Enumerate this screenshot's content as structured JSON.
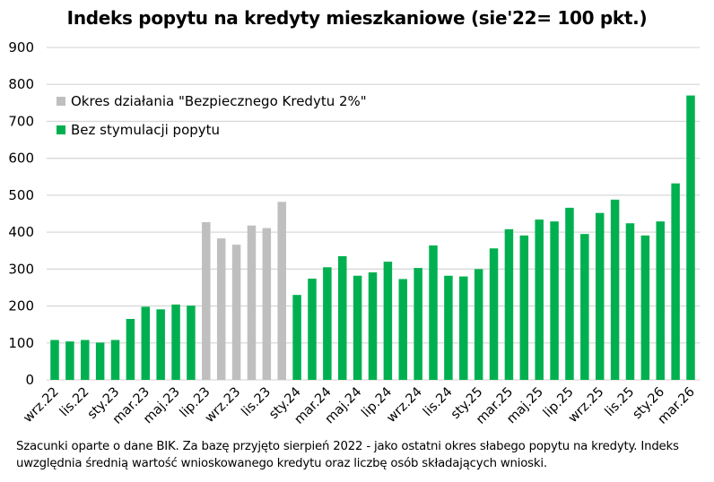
{
  "chart_data": {
    "type": "bar",
    "title": "Indeks popytu na kredyty mieszkaniowe (sie'22= 100 pkt.)",
    "xlabel": "",
    "ylabel": "",
    "ylim": [
      0,
      900
    ],
    "yticks": [
      0,
      100,
      200,
      300,
      400,
      500,
      600,
      700,
      800,
      900
    ],
    "grid": true,
    "legend_position": "top-left",
    "xtick_labels": [
      "wrz.22",
      "lis.22",
      "sty.23",
      "mar.23",
      "maj.23",
      "lip.23",
      "wrz.23",
      "lis.23",
      "sty.24",
      "mar.24",
      "maj.24",
      "lip.24",
      "wrz.24",
      "lis.24",
      "sty.25",
      "mar.25",
      "maj.25",
      "lip.25",
      "wrz.25",
      "lis.25",
      "sty.26",
      "mar.26"
    ],
    "series": [
      {
        "name": "Okres działania \"Bezpiecznego Kredytu 2%\"",
        "color": "#bfbfbf"
      },
      {
        "name": "Bez stymulacji popytu",
        "color": "#00b050"
      }
    ],
    "values": [
      108,
      104,
      108,
      101,
      108,
      165,
      198,
      191,
      204,
      201,
      427,
      383,
      366,
      418,
      411,
      482,
      230,
      274,
      305,
      335,
      282,
      291,
      320,
      273,
      303,
      364,
      282,
      280,
      300,
      356,
      408,
      391,
      434,
      429,
      466,
      395,
      452,
      488,
      424,
      391,
      429,
      532,
      770
    ],
    "series_index": [
      1,
      1,
      1,
      1,
      1,
      1,
      1,
      1,
      1,
      1,
      0,
      0,
      0,
      0,
      0,
      0,
      1,
      1,
      1,
      1,
      1,
      1,
      1,
      1,
      1,
      1,
      1,
      1,
      1,
      1,
      1,
      1,
      1,
      1,
      1,
      1,
      1,
      1,
      1,
      1,
      1,
      1,
      1
    ]
  },
  "note": "Szacunki oparte o dane BIK. Za bazę przyjęto sierpień 2022 - jako ostatni okres słabego popytu na kredyty. Indeks uwzględnia średnią wartość wnioskowanego kredytu oraz liczbę osób składających wnioski."
}
